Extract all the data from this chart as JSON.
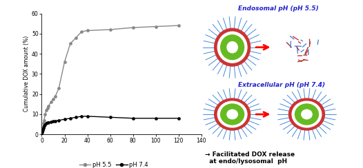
{
  "ph55_x": [
    0,
    0.5,
    1,
    1.5,
    2,
    3,
    4,
    5,
    6,
    8,
    10,
    12,
    15,
    20,
    25,
    30,
    35,
    40,
    60,
    80,
    100,
    120
  ],
  "ph55_y": [
    0,
    1.5,
    3.5,
    5.5,
    7,
    10,
    12,
    13,
    14,
    16,
    17.5,
    19,
    23,
    36,
    45,
    48,
    51,
    51.5,
    52,
    53,
    53.5,
    54
  ],
  "ph74_x": [
    0,
    0.5,
    1,
    1.5,
    2,
    3,
    4,
    5,
    6,
    8,
    10,
    12,
    15,
    20,
    25,
    30,
    35,
    40,
    60,
    80,
    100,
    120
  ],
  "ph74_y": [
    0,
    1,
    2,
    3,
    4,
    5,
    5.5,
    5.8,
    6,
    6.2,
    6.5,
    6.7,
    7,
    7.5,
    8,
    8.5,
    9,
    9,
    8.5,
    8,
    8,
    8
  ],
  "ph55_color": "#888888",
  "ph74_color": "#000000",
  "ylim": [
    0,
    60
  ],
  "xlim": [
    0,
    140
  ],
  "xticks": [
    0,
    20,
    40,
    60,
    80,
    100,
    120,
    140
  ],
  "xtick_labels": [
    "0",
    "20",
    "40",
    "60",
    "80",
    "100",
    "120",
    "140"
  ],
  "yticks": [
    0,
    10,
    20,
    30,
    40,
    50,
    60
  ],
  "ylabel": "Cumulative DOX amount (%)",
  "legend_ph55": "pH 5.5",
  "legend_ph74": "pH 7.4",
  "endosomal_label": "Endosomal pH (pH 5.5)",
  "extracellular_label": "Extracellular pH (pH 7.4)",
  "annotation_text": "→ Facilitated DOX release\n  at endo/lysosomal  pH",
  "label_color_blue": "#2222cc",
  "annotation_color": "#000000",
  "bg_color": "#ffffff",
  "spike_color": "#4488dd",
  "outer_ring_color": "#cc3333",
  "inner_color": "#66bb22",
  "white_center": "#ffffff"
}
